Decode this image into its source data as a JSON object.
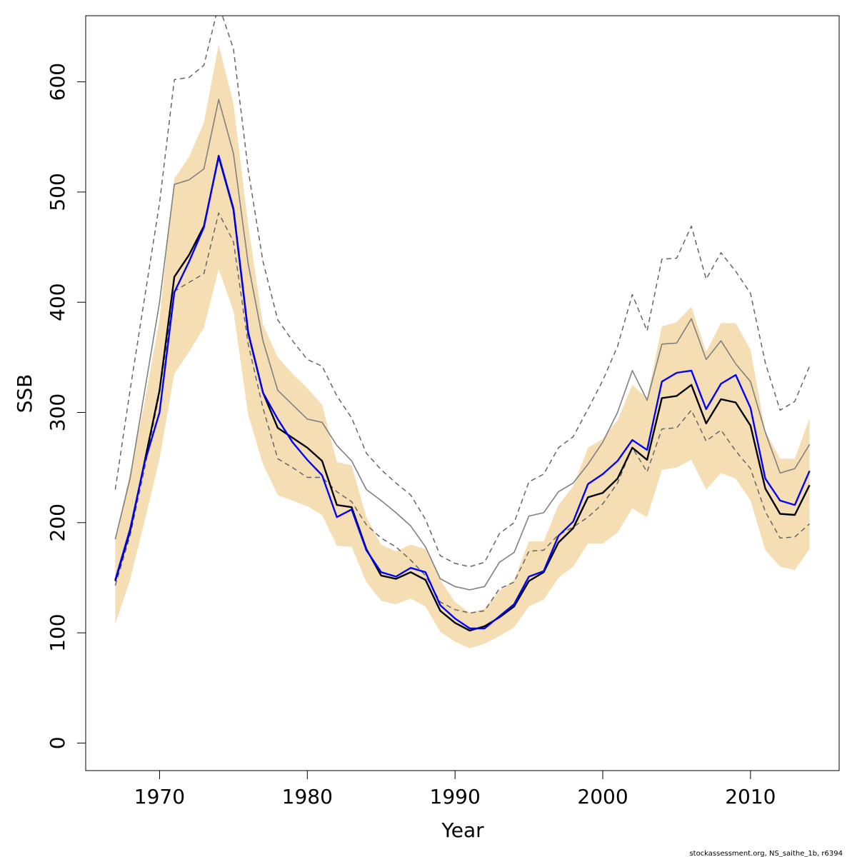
{
  "chart_data": {
    "type": "line",
    "xlabel": "Year",
    "ylabel": "SSB",
    "xlim": [
      1965,
      2016
    ],
    "ylim": [
      -25,
      660
    ],
    "x_ticks": [
      1970,
      1980,
      1990,
      2000,
      2010
    ],
    "y_ticks": [
      0,
      100,
      200,
      300,
      400,
      500,
      600
    ],
    "footer": "stockassessment.org, NS_saithe_1b, r6394",
    "colors": {
      "band": "#f5deb3",
      "estimate": "#000000",
      "alt_estimate": "#0000ff",
      "reference": "#808080",
      "reference_ci": "#666666"
    },
    "x": [
      1967,
      1968,
      1969,
      1970,
      1971,
      1972,
      1973,
      1974,
      1975,
      1976,
      1977,
      1978,
      1979,
      1980,
      1981,
      1982,
      1983,
      1984,
      1985,
      1986,
      1987,
      1988,
      1989,
      1990,
      1991,
      1992,
      1993,
      1994,
      1995,
      1996,
      1997,
      1998,
      1999,
      2000,
      2001,
      2002,
      2003,
      2004,
      2005,
      2006,
      2007,
      2008,
      2009,
      2010,
      2011,
      2012,
      2013,
      2014
    ],
    "band_upper": [
      185,
      245,
      310,
      385,
      512,
      532,
      563,
      634,
      580,
      470,
      380,
      350,
      335,
      322,
      307,
      255,
      252,
      205,
      180,
      174,
      180,
      176,
      148,
      128,
      118,
      122,
      138,
      148,
      183,
      183,
      216,
      233,
      268,
      276,
      293,
      325,
      313,
      378,
      382,
      396,
      355,
      381,
      381,
      357,
      283,
      258,
      258,
      295
    ],
    "band_lower": [
      108,
      148,
      202,
      258,
      335,
      355,
      377,
      430,
      392,
      298,
      253,
      225,
      220,
      215,
      207,
      179,
      178,
      146,
      129,
      126,
      131,
      124,
      101,
      92,
      86,
      90,
      97,
      105,
      124,
      130,
      150,
      160,
      181,
      181,
      191,
      213,
      205,
      248,
      250,
      257,
      230,
      245,
      240,
      220,
      175,
      160,
      157,
      176
    ],
    "series": [
      {
        "role": "estimate",
        "values": [
          147,
          192,
          256,
          320,
          423,
          443,
          469,
          532,
          484,
          372,
          318,
          286,
          277,
          268,
          256,
          216,
          214,
          176,
          152,
          149,
          155,
          148,
          120,
          109,
          102,
          106,
          114,
          124,
          147,
          155,
          182,
          195,
          223,
          227,
          240,
          268,
          257,
          313,
          315,
          325,
          290,
          312,
          309,
          288,
          231,
          208,
          207,
          234
        ]
      },
      {
        "role": "alt_estimate",
        "values": [
          148,
          194,
          255,
          300,
          409,
          437,
          468,
          533,
          485,
          373,
          318,
          294,
          273,
          257,
          243,
          205,
          212,
          175,
          155,
          151,
          159,
          155,
          125,
          113,
          104,
          104,
          115,
          126,
          151,
          156,
          188,
          201,
          235,
          244,
          256,
          275,
          266,
          328,
          336,
          338,
          303,
          326,
          334,
          304,
          240,
          220,
          216,
          247
        ]
      },
      {
        "role": "reference",
        "values": [
          185,
          240,
          320,
          400,
          507,
          511,
          521,
          584,
          535,
          435,
          365,
          320,
          307,
          294,
          291,
          270,
          256,
          230,
          220,
          209,
          197,
          178,
          149,
          142,
          139,
          142,
          164,
          173,
          206,
          209,
          228,
          236,
          253,
          273,
          300,
          338,
          311,
          362,
          363,
          385,
          348,
          365,
          344,
          328,
          282,
          245,
          249,
          271
        ]
      },
      {
        "role": "reference_ci_upper",
        "values": [
          230,
          320,
          405,
          490,
          602,
          604,
          615,
          670,
          630,
          520,
          437,
          384,
          365,
          348,
          342,
          315,
          295,
          263,
          248,
          236,
          225,
          203,
          170,
          163,
          160,
          164,
          190,
          200,
          237,
          244,
          268,
          278,
          303,
          329,
          360,
          407,
          374,
          439,
          440,
          469,
          421,
          445,
          428,
          408,
          345,
          302,
          310,
          342
        ]
      },
      {
        "role": "reference_ci_lower",
        "values": [
          143,
          188,
          250,
          318,
          410,
          418,
          426,
          481,
          455,
          362,
          304,
          258,
          250,
          241,
          241,
          228,
          219,
          198,
          186,
          178,
          166,
          152,
          128,
          121,
          118,
          120,
          140,
          146,
          174,
          175,
          189,
          196,
          205,
          217,
          236,
          268,
          246,
          285,
          286,
          302,
          274,
          284,
          265,
          249,
          210,
          186,
          187,
          199
        ]
      }
    ]
  }
}
